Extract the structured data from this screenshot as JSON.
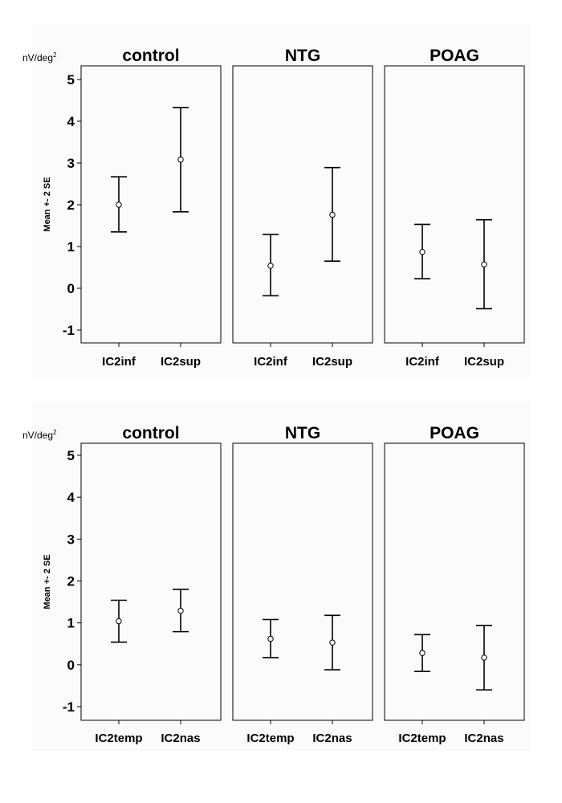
{
  "figure": {
    "unit_main": "nV/deg",
    "unit_sup": "2",
    "y_axis_label": "Mean +- 2 SE",
    "background": "#fbfbfb",
    "ink": "#000000"
  },
  "chart_data": [
    {
      "type": "errorbar",
      "ylabel": "Mean +- 2 SE",
      "ylim": [
        -1.35,
        5.35
      ],
      "yticks": [
        -1,
        0,
        1,
        2,
        3,
        4,
        5
      ],
      "panels": [
        {
          "title": "control",
          "categories": [
            "IC2inf",
            "IC2sup"
          ],
          "mean": [
            2.0,
            3.08
          ],
          "lower": [
            1.35,
            1.83
          ],
          "upper": [
            2.67,
            4.33
          ]
        },
        {
          "title": "NTG",
          "categories": [
            "IC2inf",
            "IC2sup"
          ],
          "mean": [
            0.54,
            1.76
          ],
          "lower": [
            -0.18,
            0.65
          ],
          "upper": [
            1.29,
            2.89
          ]
        },
        {
          "title": "POAG",
          "categories": [
            "IC2inf",
            "IC2sup"
          ],
          "mean": [
            0.87,
            0.57
          ],
          "lower": [
            0.23,
            -0.49
          ],
          "upper": [
            1.53,
            1.64
          ]
        }
      ]
    },
    {
      "type": "errorbar",
      "ylabel": "Mean +- 2 SE",
      "ylim": [
        -1.35,
        5.35
      ],
      "yticks": [
        -1,
        0,
        1,
        2,
        3,
        4,
        5
      ],
      "panels": [
        {
          "title": "control",
          "categories": [
            "IC2temp",
            "IC2nas"
          ],
          "mean": [
            1.04,
            1.29
          ],
          "lower": [
            0.54,
            0.79
          ],
          "upper": [
            1.54,
            1.8
          ]
        },
        {
          "title": "NTG",
          "categories": [
            "IC2temp",
            "IC2nas"
          ],
          "mean": [
            0.62,
            0.53
          ],
          "lower": [
            0.17,
            -0.12
          ],
          "upper": [
            1.08,
            1.18
          ]
        },
        {
          "title": "POAG",
          "categories": [
            "IC2temp",
            "IC2nas"
          ],
          "mean": [
            0.28,
            0.17
          ],
          "lower": [
            -0.16,
            -0.6
          ],
          "upper": [
            0.72,
            0.94
          ]
        }
      ]
    }
  ]
}
